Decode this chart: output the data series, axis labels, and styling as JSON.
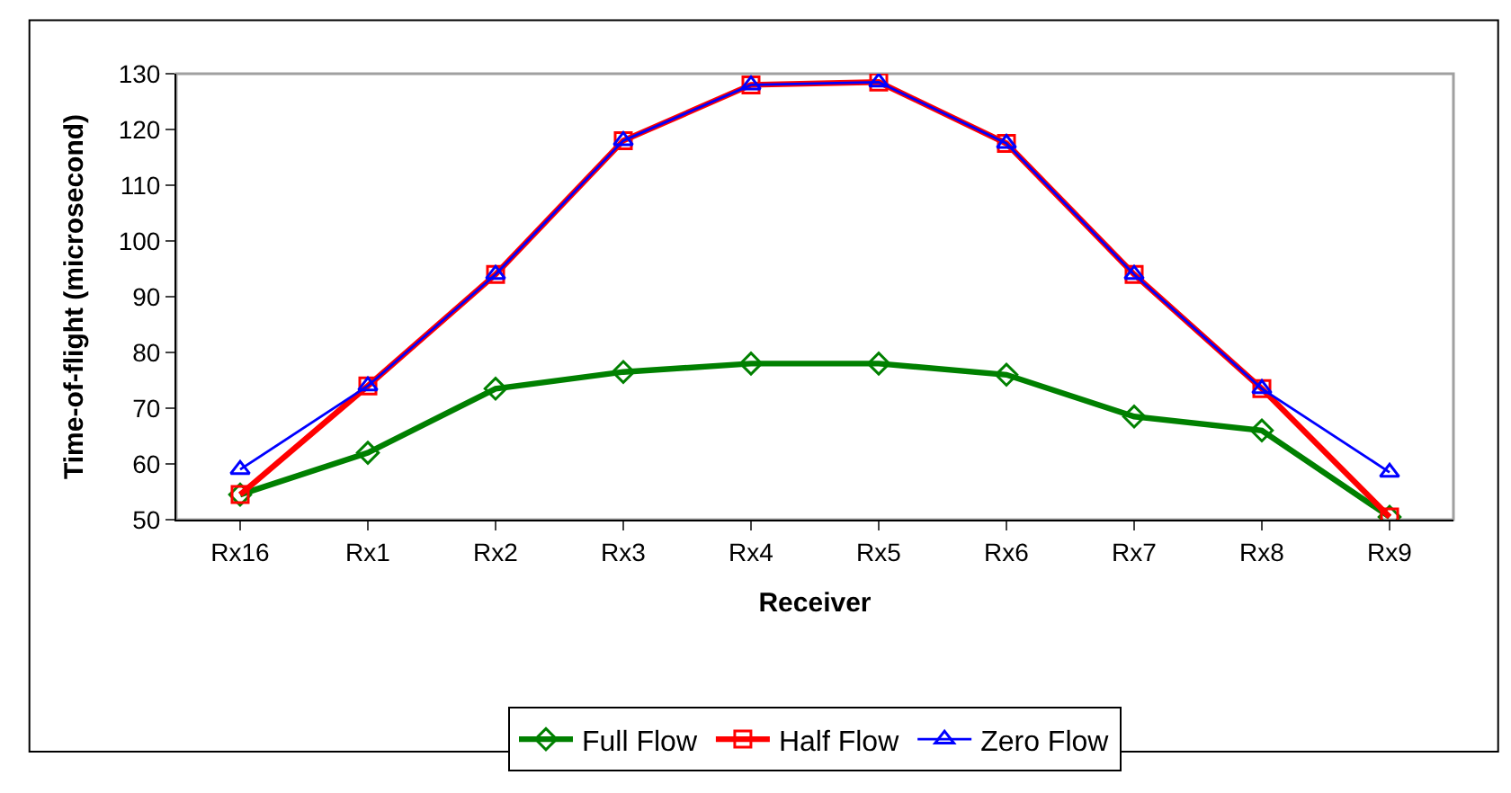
{
  "chart_data": {
    "type": "line",
    "xlabel": "Receiver",
    "ylabel": "Time-of-flight (microsecond)",
    "categories": [
      "Rx16",
      "Rx1",
      "Rx2",
      "Rx3",
      "Rx4",
      "Rx5",
      "Rx6",
      "Rx7",
      "Rx8",
      "Rx9"
    ],
    "series": [
      {
        "name": "Full Flow",
        "color": "#008000",
        "marker": "diamond",
        "values": [
          54.5,
          62,
          73.5,
          76.5,
          78,
          78,
          76,
          68.5,
          66,
          50.5
        ]
      },
      {
        "name": "Half Flow",
        "color": "#ff0000",
        "marker": "square",
        "values": [
          54.5,
          74,
          94,
          118,
          128,
          128.5,
          117.5,
          94,
          73.5,
          50.5
        ]
      },
      {
        "name": "Zero Flow",
        "color": "#0000ff",
        "marker": "triangle",
        "values": [
          59,
          74,
          94,
          118,
          128,
          128.5,
          117.5,
          94,
          73.5,
          58.5
        ]
      }
    ],
    "ylim": [
      50,
      130
    ],
    "yticks": [
      50,
      60,
      70,
      80,
      90,
      100,
      110,
      120,
      130
    ],
    "grid": false,
    "legend": "bottom",
    "line_style": "solid"
  }
}
